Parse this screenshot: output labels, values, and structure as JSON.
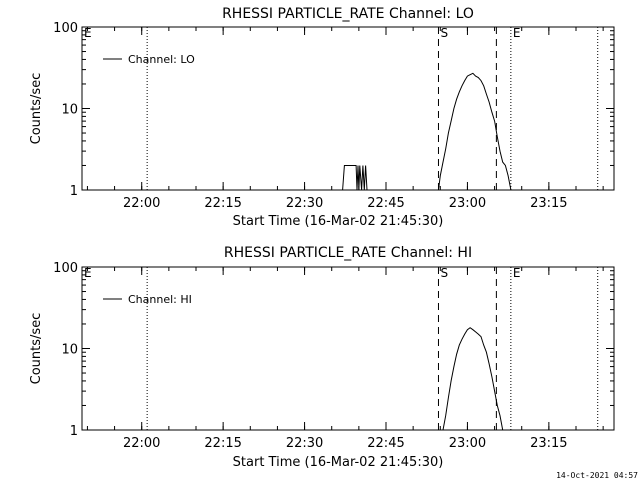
{
  "timestamp": "14-Oct-2021 04:57",
  "chart_data": [
    {
      "type": "line",
      "title": "RHESSI PARTICLE_RATE Channel: LO",
      "xlabel": "Start Time (16-Mar-02 21:45:30)",
      "ylabel": "Counts/sec",
      "yscale": "log",
      "ylim": [
        1,
        100
      ],
      "xlim": [
        "21:49:00",
        "23:27:00"
      ],
      "y_tick_labels": [
        "1",
        "10",
        "100"
      ],
      "x_tick_labels": [
        "22:00",
        "22:15",
        "22:30",
        "22:45",
        "23:00",
        "23:15"
      ],
      "grid": false,
      "legend": {
        "position": "top-left",
        "entries": [
          "Channel: LO"
        ]
      },
      "markers": [
        {
          "label": "E",
          "time": "21:49:00",
          "style": "dotted"
        },
        {
          "label": "",
          "time": "22:01:00",
          "style": "dotted"
        },
        {
          "label": "S",
          "time": "22:54:40",
          "style": "dashed"
        },
        {
          "label": "",
          "time": "23:05:20",
          "style": "dashed"
        },
        {
          "label": "E",
          "time": "23:08:00",
          "style": "dotted"
        },
        {
          "label": "",
          "time": "23:24:00",
          "style": "dotted"
        }
      ],
      "series": [
        {
          "name": "Channel: LO",
          "points": [
            [
              "22:37:00",
              1
            ],
            [
              "22:37:20",
              2
            ],
            [
              "22:39:30",
              2
            ],
            [
              "22:39:40",
              1
            ],
            [
              "22:39:50",
              2
            ],
            [
              "22:40:00",
              1
            ],
            [
              "22:40:10",
              2
            ],
            [
              "22:40:30",
              1
            ],
            [
              "22:40:45",
              2
            ],
            [
              "22:41:00",
              1
            ],
            [
              "22:41:15",
              2
            ],
            [
              "22:41:30",
              1
            ],
            [
              "22:54:40",
              1
            ],
            [
              "22:55:00",
              1.5
            ],
            [
              "22:55:30",
              2.2
            ],
            [
              "22:56:00",
              3.2
            ],
            [
              "22:56:30",
              5
            ],
            [
              "22:57:00",
              7
            ],
            [
              "22:57:30",
              10
            ],
            [
              "22:58:00",
              13
            ],
            [
              "22:58:30",
              16
            ],
            [
              "22:59:00",
              19
            ],
            [
              "22:59:30",
              22
            ],
            [
              "23:00:00",
              25
            ],
            [
              "23:00:30",
              26
            ],
            [
              "23:01:00",
              27
            ],
            [
              "23:01:30",
              25
            ],
            [
              "23:02:00",
              24
            ],
            [
              "23:02:30",
              22
            ],
            [
              "23:03:00",
              19
            ],
            [
              "23:03:30",
              15
            ],
            [
              "23:04:00",
              12
            ],
            [
              "23:04:30",
              9
            ],
            [
              "23:05:00",
              7
            ],
            [
              "23:05:30",
              4.5
            ],
            [
              "23:06:00",
              3
            ],
            [
              "23:06:30",
              2.2
            ],
            [
              "23:07:00",
              2
            ],
            [
              "23:07:30",
              1.5
            ],
            [
              "23:08:00",
              1
            ]
          ]
        }
      ]
    },
    {
      "type": "line",
      "title": "RHESSI PARTICLE_RATE Channel: HI",
      "xlabel": "Start Time (16-Mar-02 21:45:30)",
      "ylabel": "Counts/sec",
      "yscale": "log",
      "ylim": [
        1,
        100
      ],
      "xlim": [
        "21:49:00",
        "23:27:00"
      ],
      "y_tick_labels": [
        "1",
        "10",
        "100"
      ],
      "x_tick_labels": [
        "22:00",
        "22:15",
        "22:30",
        "22:45",
        "23:00",
        "23:15"
      ],
      "grid": false,
      "legend": {
        "position": "top-left",
        "entries": [
          "Channel: HI"
        ]
      },
      "markers": [
        {
          "label": "E",
          "time": "21:49:00",
          "style": "dotted"
        },
        {
          "label": "",
          "time": "22:01:00",
          "style": "dotted"
        },
        {
          "label": "S",
          "time": "22:54:40",
          "style": "dashed"
        },
        {
          "label": "",
          "time": "23:05:20",
          "style": "dashed"
        },
        {
          "label": "E",
          "time": "23:08:00",
          "style": "dotted"
        },
        {
          "label": "",
          "time": "23:24:00",
          "style": "dotted"
        }
      ],
      "series": [
        {
          "name": "Channel: HI",
          "points": [
            [
              "22:55:30",
              1
            ],
            [
              "22:56:00",
              1.5
            ],
            [
              "22:56:30",
              2.5
            ],
            [
              "22:57:00",
              4
            ],
            [
              "22:57:30",
              6
            ],
            [
              "22:58:00",
              8.5
            ],
            [
              "22:58:30",
              11
            ],
            [
              "22:59:00",
              13
            ],
            [
              "22:59:30",
              15
            ],
            [
              "23:00:00",
              17
            ],
            [
              "23:00:30",
              18
            ],
            [
              "23:01:00",
              17
            ],
            [
              "23:01:30",
              16
            ],
            [
              "23:02:00",
              15
            ],
            [
              "23:02:30",
              14
            ],
            [
              "23:03:00",
              11
            ],
            [
              "23:03:30",
              9
            ],
            [
              "23:04:00",
              6.5
            ],
            [
              "23:04:30",
              4.5
            ],
            [
              "23:05:00",
              3
            ],
            [
              "23:05:30",
              2
            ],
            [
              "23:06:00",
              1.5
            ],
            [
              "23:06:30",
              1
            ]
          ]
        }
      ]
    }
  ]
}
